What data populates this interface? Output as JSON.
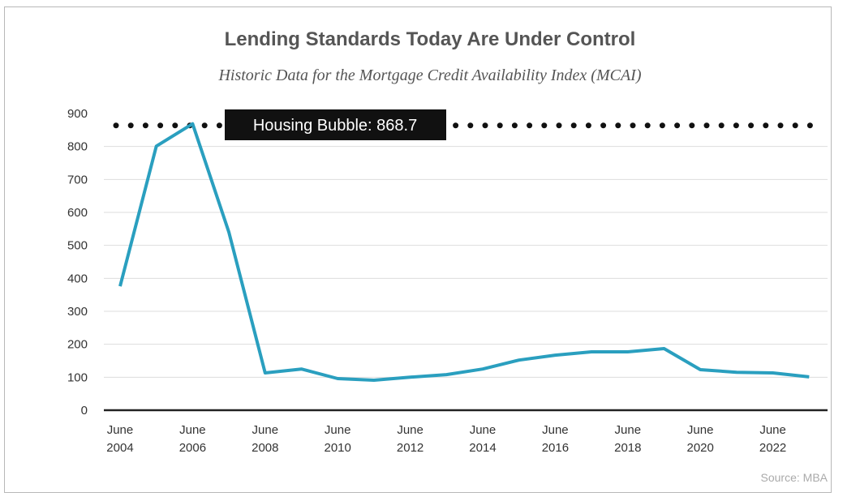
{
  "chart_data": {
    "type": "line",
    "title": "Lending Standards Today Are Under Control",
    "subtitle": "Historic Data for the Mortgage Credit Availability Index (MCAI)",
    "xlabel": "",
    "ylabel": "",
    "ylim": [
      0,
      900
    ],
    "yticks": [
      0,
      100,
      200,
      300,
      400,
      500,
      600,
      700,
      800,
      900
    ],
    "xticks": [
      {
        "month": "June",
        "year": "2004"
      },
      {
        "month": "June",
        "year": "2006"
      },
      {
        "month": "June",
        "year": "2008"
      },
      {
        "month": "June",
        "year": "2010"
      },
      {
        "month": "June",
        "year": "2012"
      },
      {
        "month": "June",
        "year": "2014"
      },
      {
        "month": "June",
        "year": "2016"
      },
      {
        "month": "June",
        "year": "2018"
      },
      {
        "month": "June",
        "year": "2020"
      },
      {
        "month": "June",
        "year": "2022"
      }
    ],
    "grid": true,
    "line_color": "#2a9fbf",
    "x": [
      "2004-06",
      "2005-06",
      "2006-06",
      "2007-06",
      "2008-06",
      "2009-06",
      "2010-06",
      "2011-06",
      "2012-06",
      "2013-06",
      "2014-06",
      "2015-06",
      "2016-06",
      "2017-06",
      "2018-06",
      "2019-06",
      "2020-06",
      "2021-06",
      "2022-06",
      "2023-06"
    ],
    "values": [
      376,
      801,
      868.7,
      540,
      113,
      125,
      96,
      91,
      100,
      108,
      125,
      152,
      167,
      177,
      177,
      187,
      123,
      115,
      113,
      101
    ],
    "annotation": {
      "label": "Housing Bubble: 868.7",
      "value": 868.7,
      "style": "dotted reference line"
    },
    "source": "Source: MBA"
  }
}
